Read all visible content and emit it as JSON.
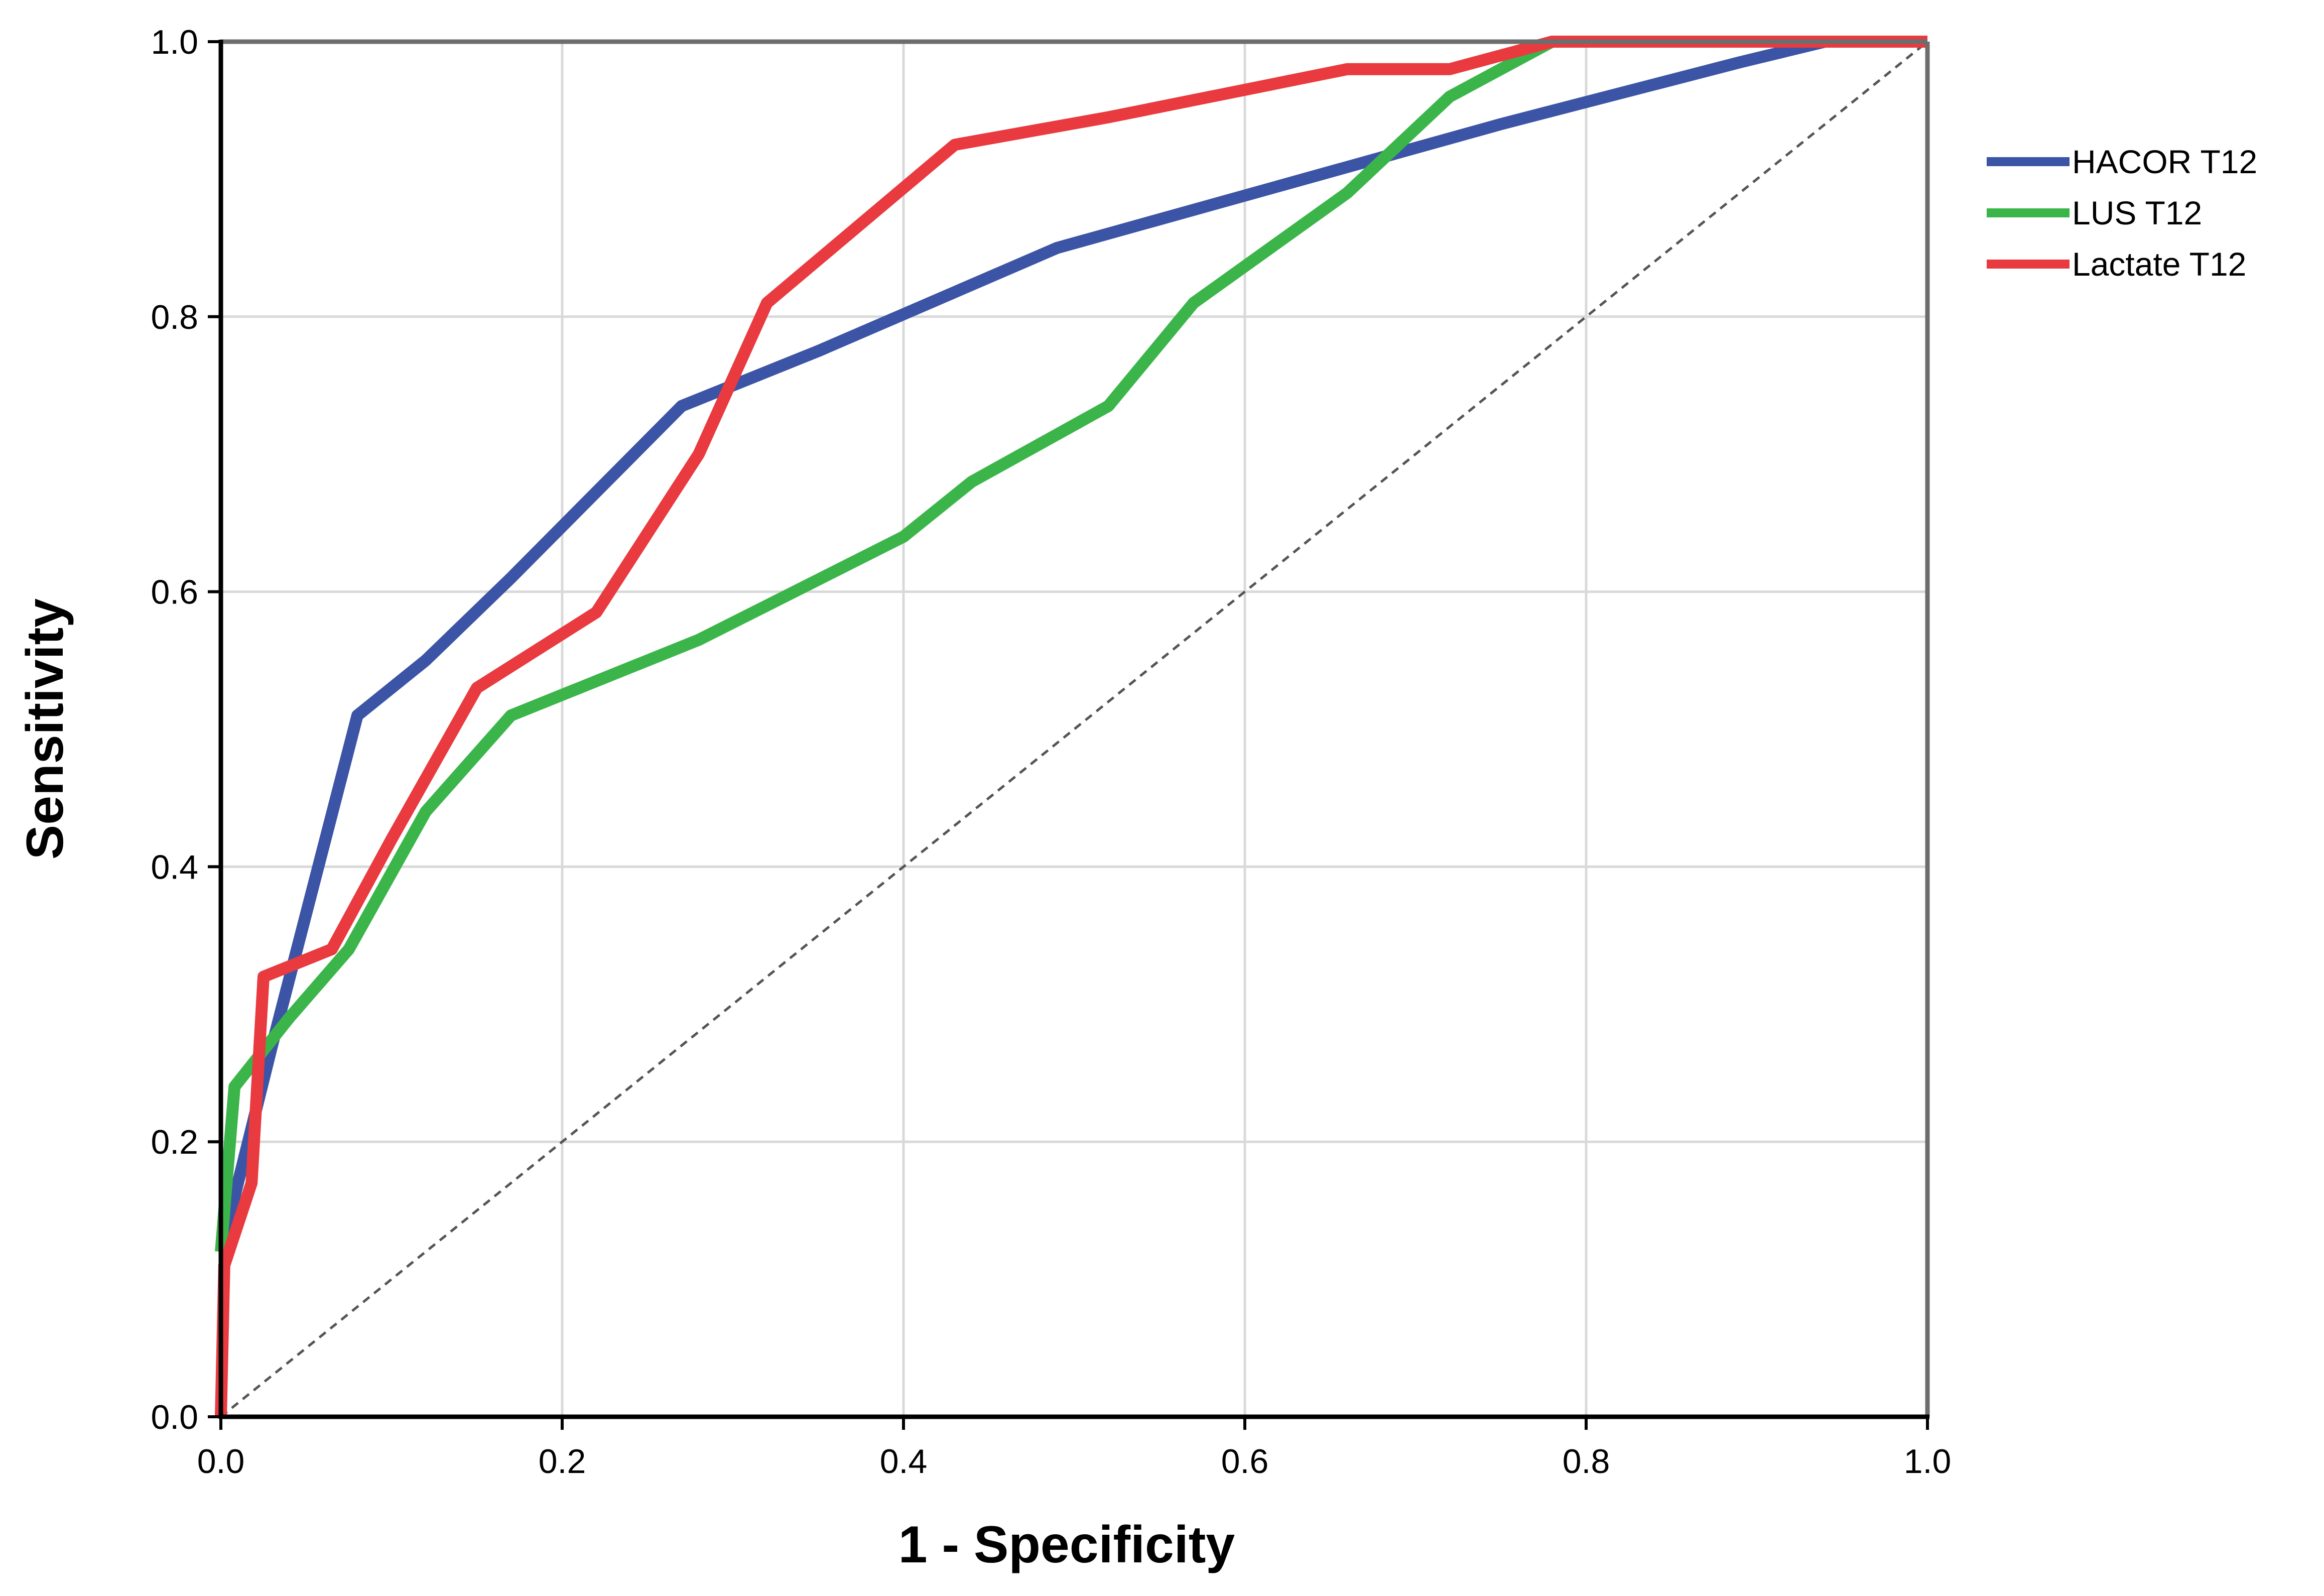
{
  "chart_data": {
    "type": "line",
    "title": "",
    "xlabel": "1 - Specificity",
    "ylabel": "Sensitivity",
    "xlim": [
      0,
      1
    ],
    "ylim": [
      0,
      1
    ],
    "x_ticks": [
      "0.0",
      "0.2",
      "0.4",
      "0.6",
      "0.8",
      "1.0"
    ],
    "y_ticks": [
      "0.0",
      "0.2",
      "0.4",
      "0.6",
      "0.8",
      "1.0"
    ],
    "grid": true,
    "legend_position": "top-right",
    "reference_line": {
      "style": "dashed",
      "color": "#555555",
      "points": [
        [
          0,
          0
        ],
        [
          1,
          1
        ]
      ]
    },
    "series": [
      {
        "name": "HACOR T12",
        "color": "#3c54a5",
        "points": [
          [
            0,
            0.12
          ],
          [
            0.01,
            0.17
          ],
          [
            0.03,
            0.27
          ],
          [
            0.08,
            0.51
          ],
          [
            0.12,
            0.55
          ],
          [
            0.17,
            0.61
          ],
          [
            0.27,
            0.735
          ],
          [
            0.35,
            0.775
          ],
          [
            0.49,
            0.85
          ],
          [
            0.62,
            0.895
          ],
          [
            0.75,
            0.94
          ],
          [
            0.89,
            0.985
          ],
          [
            0.94,
            1.0
          ],
          [
            1.0,
            1.0
          ]
        ]
      },
      {
        "name": "LUS T12",
        "color": "#3bb54a",
        "points": [
          [
            0,
            0.12
          ],
          [
            0.008,
            0.24
          ],
          [
            0.04,
            0.29
          ],
          [
            0.075,
            0.34
          ],
          [
            0.12,
            0.44
          ],
          [
            0.17,
            0.51
          ],
          [
            0.28,
            0.565
          ],
          [
            0.4,
            0.64
          ],
          [
            0.44,
            0.68
          ],
          [
            0.52,
            0.735
          ],
          [
            0.57,
            0.81
          ],
          [
            0.66,
            0.89
          ],
          [
            0.72,
            0.96
          ],
          [
            0.78,
            1.0
          ],
          [
            1.0,
            1.0
          ]
        ]
      },
      {
        "name": "Lactate T12",
        "color": "#e83a3f",
        "points": [
          [
            0,
            0
          ],
          [
            0.002,
            0.11
          ],
          [
            0.018,
            0.17
          ],
          [
            0.025,
            0.32
          ],
          [
            0.065,
            0.34
          ],
          [
            0.1,
            0.42
          ],
          [
            0.15,
            0.53
          ],
          [
            0.22,
            0.585
          ],
          [
            0.28,
            0.7
          ],
          [
            0.32,
            0.81
          ],
          [
            0.43,
            0.925
          ],
          [
            0.52,
            0.945
          ],
          [
            0.66,
            0.98
          ],
          [
            0.72,
            0.98
          ],
          [
            0.78,
            1.0
          ],
          [
            1.0,
            1.0
          ]
        ]
      }
    ]
  }
}
